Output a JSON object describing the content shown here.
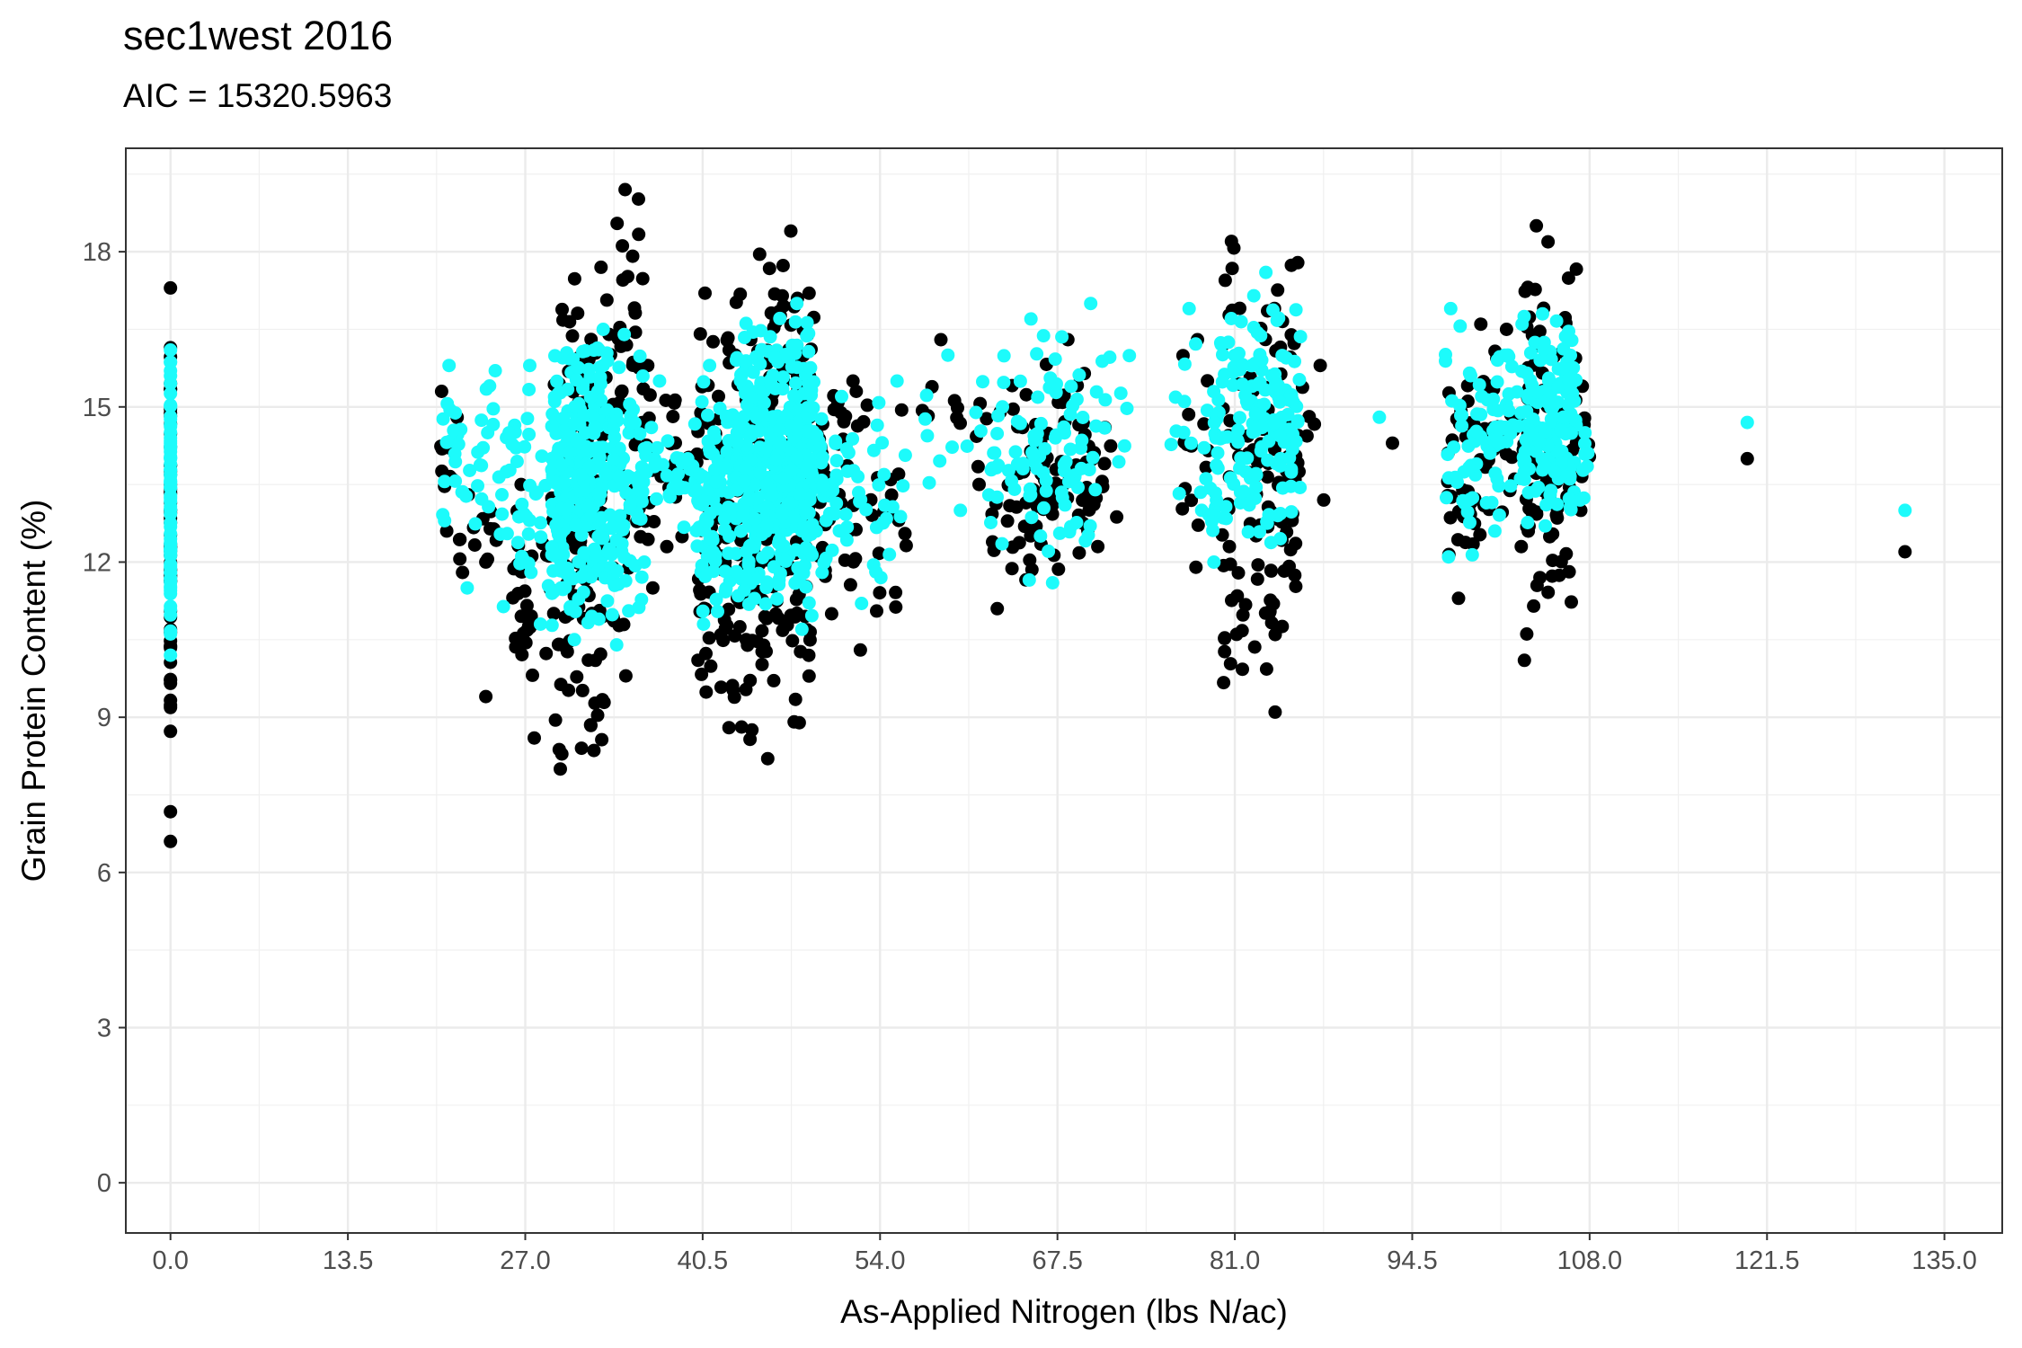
{
  "chart_data": {
    "type": "scatter",
    "title": "sec1west 2016",
    "subtitle": "AIC = 15320.5963",
    "xlabel": "As-Applied Nitrogen (lbs N/ac)",
    "ylabel": "Grain Protein Content (%)",
    "xlim": [
      -3.4,
      139.4
    ],
    "ylim": [
      -0.97,
      20.0
    ],
    "x_ticks": [
      0,
      13.5,
      27,
      40.5,
      54,
      67.5,
      81,
      94.5,
      108,
      121.5,
      135
    ],
    "x_tick_labels": [
      "0.0",
      "13.5",
      "27.0",
      "40.5",
      "54.0",
      "67.5",
      "81.0",
      "94.5",
      "108.0",
      "121.5",
      "135.0"
    ],
    "y_ticks": [
      0,
      3,
      6,
      9,
      12,
      15,
      18
    ],
    "y_tick_labels": [
      "0",
      "3",
      "6",
      "9",
      "12",
      "15",
      "18"
    ],
    "grid": true,
    "series": [
      {
        "color": "#000000",
        "clusters": [
          {
            "x": [
              0,
              0
            ],
            "y": [
              6.6,
              17.3
            ],
            "n": 60
          },
          {
            "x": [
              20.5,
              22
            ],
            "y": [
              12.6,
              15.3
            ],
            "n": 10
          },
          {
            "x": [
              22,
              25
            ],
            "y": [
              11.8,
              13.3
            ],
            "n": 14
          },
          {
            "x": [
              24,
              24
            ],
            "y": [
              9.4,
              9.4
            ],
            "n": 1
          },
          {
            "x": [
              26,
              29
            ],
            "y": [
              8.6,
              13.5
            ],
            "n": 30
          },
          {
            "x": [
              29,
              33
            ],
            "y": [
              8.0,
              17.7
            ],
            "n": 150
          },
          {
            "x": [
              33,
              36
            ],
            "y": [
              9.8,
              19.2
            ],
            "n": 60
          },
          {
            "x": [
              36,
              40
            ],
            "y": [
              11.5,
              15.8
            ],
            "n": 30
          },
          {
            "x": [
              40,
              43
            ],
            "y": [
              8.8,
              17.2
            ],
            "n": 90
          },
          {
            "x": [
              43,
              49
            ],
            "y": [
              8.2,
              18.4
            ],
            "n": 220
          },
          {
            "x": [
              49,
              52
            ],
            "y": [
              11.0,
              15.5
            ],
            "n": 40
          },
          {
            "x": [
              52,
              56
            ],
            "y": [
              10.3,
              15.3
            ],
            "n": 25
          },
          {
            "x": [
              57,
              62
            ],
            "y": [
              13.5,
              16.3
            ],
            "n": 12
          },
          {
            "x": [
              62,
              70
            ],
            "y": [
              11.1,
              16.3
            ],
            "n": 90
          },
          {
            "x": [
              70,
              73
            ],
            "y": [
              12.3,
              14.6
            ],
            "n": 12
          },
          {
            "x": [
              77,
              79
            ],
            "y": [
              11.9,
              16.3
            ],
            "n": 15
          },
          {
            "x": [
              80,
              86
            ],
            "y": [
              9.1,
              18.2
            ],
            "n": 120
          },
          {
            "x": [
              86,
              88
            ],
            "y": [
              13.2,
              15.8
            ],
            "n": 6
          },
          {
            "x": [
              93,
              94
            ],
            "y": [
              14.3,
              14.3
            ],
            "n": 1
          },
          {
            "x": [
              97,
              100
            ],
            "y": [
              11.3,
              16.6
            ],
            "n": 40
          },
          {
            "x": [
              100,
              103
            ],
            "y": [
              12.3,
              16.5
            ],
            "n": 30
          },
          {
            "x": [
              103,
              107
            ],
            "y": [
              10.1,
              18.5
            ],
            "n": 120
          },
          {
            "x": [
              107,
              108
            ],
            "y": [
              13.0,
              15.4
            ],
            "n": 8
          },
          {
            "x": [
              120,
              120
            ],
            "y": [
              14.0,
              14.0
            ],
            "n": 1
          },
          {
            "x": [
              132,
              132
            ],
            "y": [
              12.2,
              12.2
            ],
            "n": 1
          }
        ]
      },
      {
        "color": "#1cfbfb",
        "clusters": [
          {
            "x": [
              0,
              0
            ],
            "y": [
              10.2,
              16.1
            ],
            "n": 80
          },
          {
            "x": [
              20.5,
              22
            ],
            "y": [
              12.8,
              15.8
            ],
            "n": 16
          },
          {
            "x": [
              22,
              25
            ],
            "y": [
              11.5,
              15.7
            ],
            "n": 22
          },
          {
            "x": [
              25,
              29
            ],
            "y": [
              10.8,
              15.8
            ],
            "n": 40
          },
          {
            "x": [
              29,
              33
            ],
            "y": [
              10.5,
              16.5
            ],
            "n": 260
          },
          {
            "x": [
              33,
              36
            ],
            "y": [
              10.4,
              16.4
            ],
            "n": 90
          },
          {
            "x": [
              36,
              40
            ],
            "y": [
              12.0,
              15.5
            ],
            "n": 35
          },
          {
            "x": [
              40,
              43
            ],
            "y": [
              10.8,
              15.8
            ],
            "n": 90
          },
          {
            "x": [
              43,
              49
            ],
            "y": [
              10.7,
              17.0
            ],
            "n": 380
          },
          {
            "x": [
              49,
              52
            ],
            "y": [
              11.8,
              15.2
            ],
            "n": 40
          },
          {
            "x": [
              52,
              56
            ],
            "y": [
              11.2,
              15.5
            ],
            "n": 25
          },
          {
            "x": [
              57,
              62
            ],
            "y": [
              13.0,
              16.0
            ],
            "n": 12
          },
          {
            "x": [
              62,
              70
            ],
            "y": [
              11.6,
              16.7
            ],
            "n": 90
          },
          {
            "x": [
              70,
              73
            ],
            "y": [
              13.4,
              17.0
            ],
            "n": 14
          },
          {
            "x": [
              76,
              79
            ],
            "y": [
              13.0,
              16.9
            ],
            "n": 15
          },
          {
            "x": [
              79,
              86
            ],
            "y": [
              12.0,
              17.6
            ],
            "n": 160
          },
          {
            "x": [
              92,
              94
            ],
            "y": [
              14.8,
              14.8
            ],
            "n": 1
          },
          {
            "x": [
              97,
              100
            ],
            "y": [
              12.1,
              16.9
            ],
            "n": 40
          },
          {
            "x": [
              100,
              103
            ],
            "y": [
              12.6,
              16.6
            ],
            "n": 45
          },
          {
            "x": [
              103,
              107
            ],
            "y": [
              12.7,
              16.8
            ],
            "n": 130
          },
          {
            "x": [
              107,
              108
            ],
            "y": [
              13.2,
              14.5
            ],
            "n": 8
          },
          {
            "x": [
              120,
              120
            ],
            "y": [
              14.7,
              14.7
            ],
            "n": 1
          },
          {
            "x": [
              132,
              132
            ],
            "y": [
              13.0,
              13.0
            ],
            "n": 1
          }
        ]
      }
    ]
  }
}
